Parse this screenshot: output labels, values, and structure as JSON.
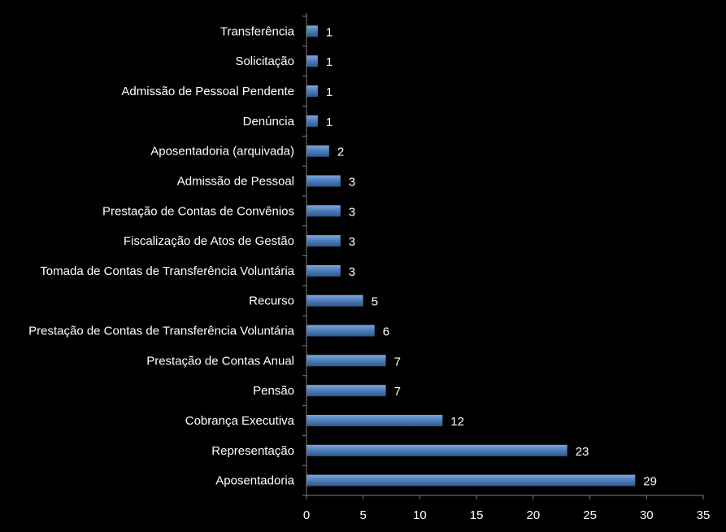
{
  "chart_data": {
    "type": "bar",
    "orientation": "horizontal",
    "title": "",
    "xlabel": "",
    "ylabel": "",
    "xlim": [
      0,
      35
    ],
    "xticks": [
      0,
      5,
      10,
      15,
      20,
      25,
      30,
      35
    ],
    "categories": [
      "Transferência",
      "Solicitação",
      "Admissão de Pessoal Pendente",
      "Denúncia",
      "Aposentadoria (arquivada)",
      "Admissão de Pessoal",
      "Prestação de Contas de Convênios",
      "Fiscalização de Atos de Gestão",
      "Tomada de Contas de Transferência Voluntária",
      "Recurso",
      "Prestação de Contas de Transferência Voluntária",
      "Prestação de Contas Anual",
      "Pensão",
      "Cobrança Executiva",
      "Representação",
      "Aposentadoria"
    ],
    "values": [
      1,
      1,
      1,
      1,
      2,
      3,
      3,
      3,
      3,
      5,
      6,
      7,
      7,
      12,
      23,
      29
    ],
    "grid": false,
    "legend": "none",
    "colors": {
      "bar_light": "#7fa6dc",
      "bar_mid": "#4f81bd",
      "bar_dark": "#2c5a8f",
      "axis": "#808080",
      "text": "#ffffff",
      "background": "#000000"
    }
  }
}
